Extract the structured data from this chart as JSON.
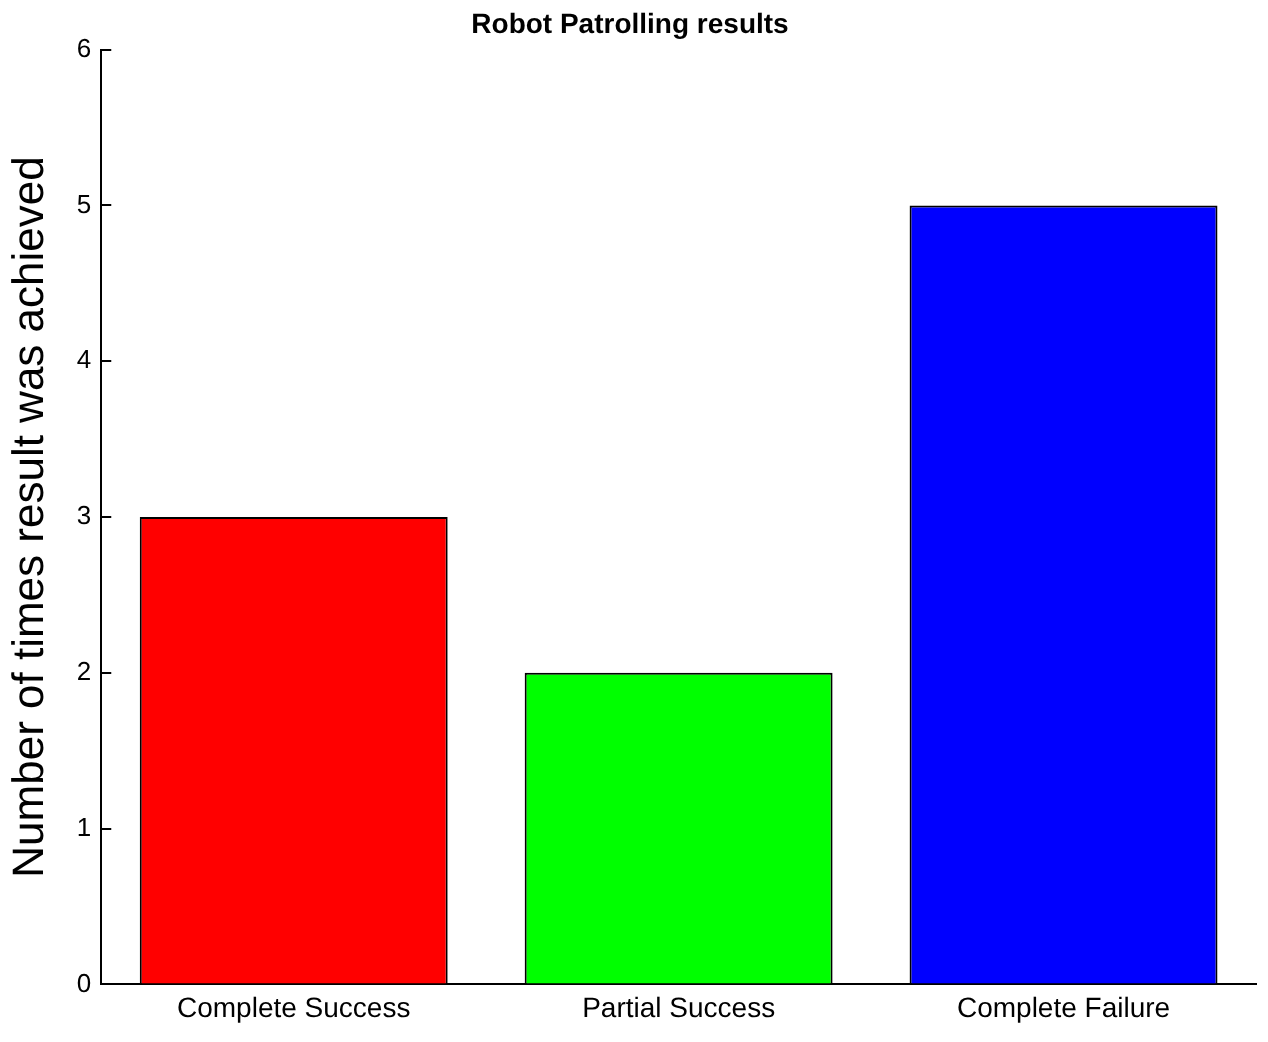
{
  "chart_data": {
    "type": "bar",
    "title": "Robot Patrolling results",
    "ylabel": "Number of times result was achieved",
    "categories": [
      "Complete Success",
      "Partial Success",
      "Complete Failure"
    ],
    "values": [
      3,
      2,
      5
    ],
    "colors": [
      "#ff0000",
      "#00ff00",
      "#0000ff"
    ],
    "ylim": [
      0,
      6
    ],
    "yticks": [
      0,
      1,
      2,
      3,
      4,
      5,
      6
    ],
    "grid": false,
    "legend": false
  }
}
